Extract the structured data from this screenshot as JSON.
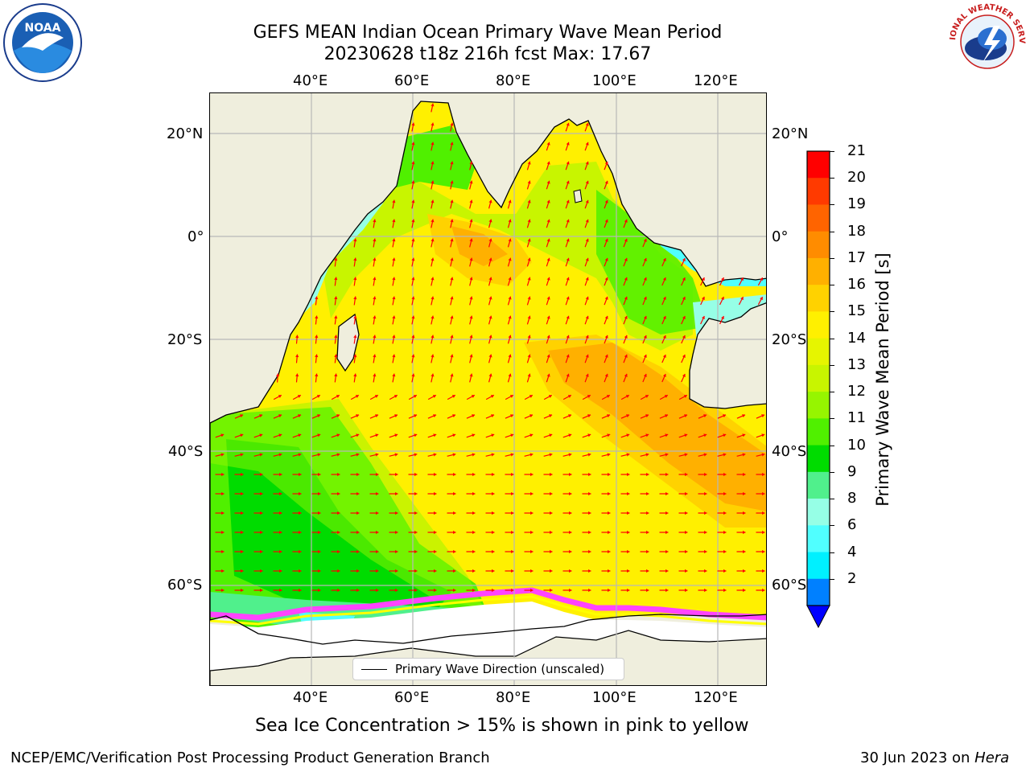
{
  "header": {
    "title_line1": "GEFS MEAN Indian Ocean Primary Wave Mean Period",
    "title_line2": "20230628 t18z 216h fcst   Max: 17.67"
  },
  "logos": {
    "left": {
      "name": "noaa-logo",
      "text": "NOAA"
    },
    "right": {
      "name": "nws-logo",
      "text": "NATIONAL WEATHER SERVICE"
    }
  },
  "axes": {
    "lon_labels": [
      "40°E",
      "60°E",
      "80°E",
      "100°E",
      "120°E"
    ],
    "lat_labels": [
      "20°N",
      "0°",
      "20°S",
      "40°S",
      "60°S"
    ]
  },
  "legend": {
    "label": "Primary Wave Direction (unscaled)"
  },
  "colorbar": {
    "label": "Primary Wave Mean Period [s]",
    "ticks": [
      "21",
      "20",
      "19",
      "18",
      "17",
      "16",
      "15",
      "14",
      "13",
      "12",
      "11",
      "10",
      "9",
      "8",
      "6",
      "4",
      "2"
    ],
    "colors": [
      "#ff0000",
      "#ff3a00",
      "#ff6400",
      "#ff8c00",
      "#ffb000",
      "#ffd200",
      "#fff000",
      "#e6f500",
      "#c8f500",
      "#96f500",
      "#50f000",
      "#00dc00",
      "#50f08c",
      "#96ffe6",
      "#50ffff",
      "#00f0ff",
      "#0080ff"
    ],
    "extend_color": "#0000ff"
  },
  "footer": {
    "note": "Sea Ice Concentration > 15% is shown in pink to yellow",
    "left": "NCEP/EMC/Verification Post Processing Product Generation Branch",
    "right_date": "30 Jun 2023 on",
    "right_host": "Hera"
  },
  "map_colors": {
    "land": "#efeedd",
    "arrow": "#ff0000",
    "grid": "#b8b8b8",
    "ice_pink": "#ff44ff",
    "ice_yellow": "#ffff00"
  }
}
